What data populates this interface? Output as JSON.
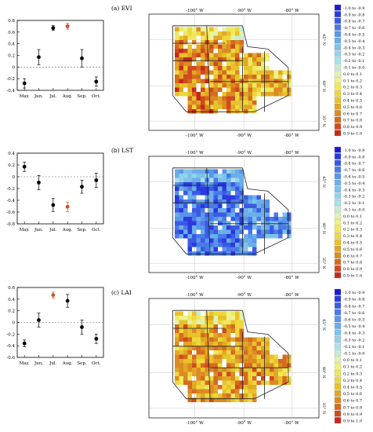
{
  "months": [
    "May.",
    "Jun.",
    "Jul.",
    "Aug.",
    "Sep.",
    "Oct."
  ],
  "point_color_default": "#000000",
  "point_color_highlight": "#c8502a",
  "map_axes": {
    "lon_ticks_top": [
      "-100° W",
      "-90° W",
      "-80° W"
    ],
    "lon_ticks_bottom": [
      "-100° W",
      "-90° W",
      "-80° W"
    ],
    "lat_ticks": [
      "45° N",
      "40° N",
      "35° N"
    ]
  },
  "legend_bins": [
    {
      "label": "-1.0 to -0.9",
      "color": "#1a1ad6"
    },
    {
      "label": "-0.9 to -0.8",
      "color": "#2a3ae0"
    },
    {
      "label": "-0.8 to -0.7",
      "color": "#3a5ae6"
    },
    {
      "label": "-0.7 to -0.6",
      "color": "#4a7ae8"
    },
    {
      "label": "-0.6 to -0.5",
      "color": "#5a96ea"
    },
    {
      "label": "-0.5 to -0.4",
      "color": "#6aaeea"
    },
    {
      "label": "-0.4 to -0.3",
      "color": "#7ec2ea"
    },
    {
      "label": "-0.3 to -0.2",
      "color": "#94d2ea"
    },
    {
      "label": "-0.2 to -0.1",
      "color": "#aee0e6"
    },
    {
      "label": "-0.1 to -0.0",
      "color": "#c6ecd6"
    },
    {
      "label": "0.0 to 0.1",
      "color": "#e2f2b0"
    },
    {
      "label": "0.1 to 0.2",
      "color": "#eef28a"
    },
    {
      "label": "0.2 to 0.3",
      "color": "#f0e85e"
    },
    {
      "label": "0.3 to 0.4",
      "color": "#eed83e"
    },
    {
      "label": "0.4 to 0.5",
      "color": "#e8c22a"
    },
    {
      "label": "0.5 to 0.6",
      "color": "#e2a624"
    },
    {
      "label": "0.6 to 0.7",
      "color": "#dc8a22"
    },
    {
      "label": "0.7 to 0.8",
      "color": "#d66a20"
    },
    {
      "label": "0.8 to 0.9",
      "color": "#d04a1e"
    },
    {
      "label": "0.9 to 1.0",
      "color": "#c8281c"
    }
  ],
  "chart_data": [
    {
      "type": "scatter",
      "categories": [
        "May.",
        "Jun.",
        "Jul.",
        "Aug.",
        "Sep.",
        "Oct."
      ],
      "values": [
        -0.28,
        0.17,
        0.67,
        0.7,
        0.15,
        -0.25
      ],
      "error": [
        0.08,
        0.13,
        0.04,
        0.05,
        0.15,
        0.08
      ],
      "highlight_index": 3,
      "yticks": [
        -0.4,
        -0.2,
        0.0,
        0.2,
        0.4,
        0.6,
        0.8
      ],
      "ylim": [
        -0.4,
        0.8
      ],
      "reference_line": 0
    },
    {
      "type": "scatter",
      "categories": [
        "May.",
        "Jun.",
        "Jul.",
        "Aug.",
        "Sep.",
        "Oct."
      ],
      "values": [
        0.17,
        -0.1,
        -0.48,
        -0.51,
        -0.17,
        -0.06
      ],
      "error": [
        0.08,
        0.12,
        0.11,
        0.08,
        0.11,
        0.12
      ],
      "highlight_index": 3,
      "yticks": [
        -0.8,
        -0.6,
        -0.4,
        -0.2,
        0.0,
        0.2,
        0.4
      ],
      "ylim": [
        -0.8,
        0.4
      ],
      "reference_line": 0
    },
    {
      "type": "scatter",
      "categories": [
        "May.",
        "Jun.",
        "Jul.",
        "Aug.",
        "Sep.",
        "Oct."
      ],
      "values": [
        -0.36,
        0.04,
        0.47,
        0.37,
        -0.08,
        -0.28
      ],
      "error": [
        0.06,
        0.12,
        0.05,
        0.11,
        0.12,
        0.08
      ],
      "highlight_index": 2,
      "yticks": [
        -0.6,
        -0.4,
        -0.2,
        0.0,
        0.2,
        0.4,
        0.6
      ],
      "ylim": [
        -0.6,
        0.6
      ],
      "reference_line": 0
    },
    {
      "type": "heatmap",
      "title": "(a) EVI"
    },
    {
      "type": "heatmap",
      "title": "(b) LST"
    },
    {
      "type": "heatmap",
      "title": "(c) LAI"
    }
  ]
}
